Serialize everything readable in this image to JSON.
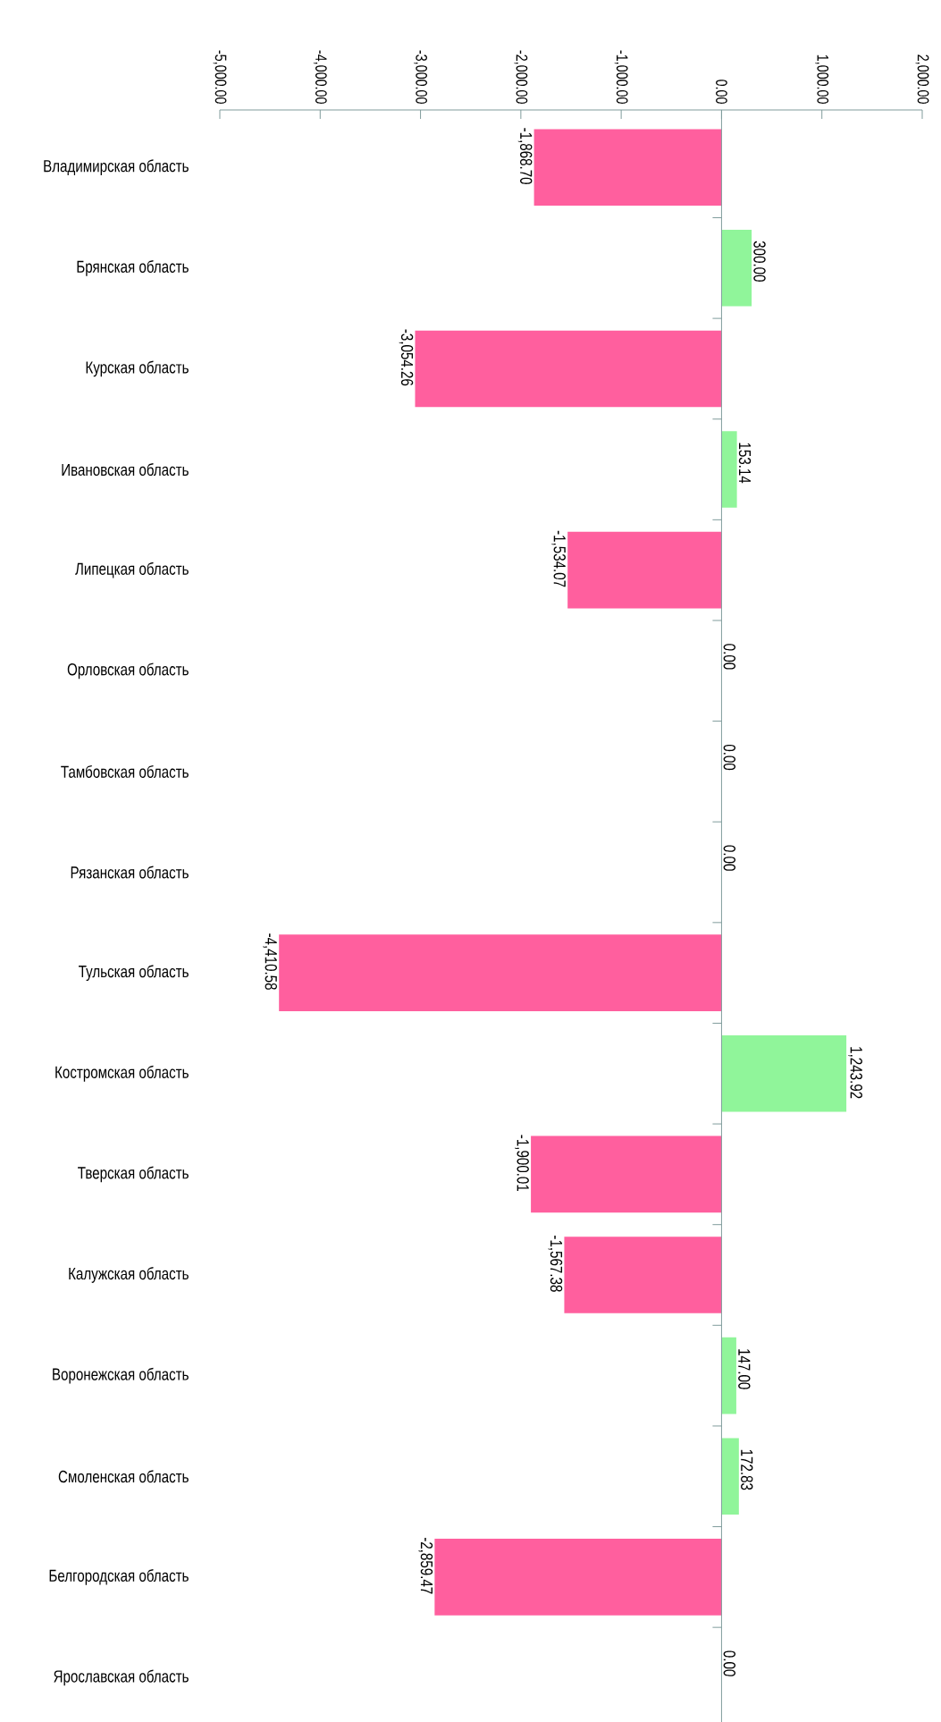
{
  "chart_data": {
    "type": "bar",
    "orientation": "horizontal",
    "categories": [
      "Владимирская область",
      "Брянская область",
      "Курская область",
      "Ивановская область",
      "Липецкая область",
      "Орловская область",
      "Тамбовская область",
      "Рязанская область",
      "Тульская область",
      "Костромская область",
      "Тверская область",
      "Калужская область",
      "Воронежская область",
      "Смоленская область",
      "Белгородская область",
      "Ярославская область"
    ],
    "values": [
      -1868.7,
      300.0,
      -3054.26,
      153.14,
      -1534.07,
      0.0,
      0.0,
      0.0,
      -4410.58,
      1243.92,
      -1900.01,
      -1567.38,
      147.0,
      172.83,
      -2859.47,
      0.0
    ],
    "colors": [
      "#ff5f9e",
      "#90f59a",
      "#ff5f9e",
      "#90f59a",
      "#ff5f9e",
      "#90f59a",
      "#90f59a",
      "#90f59a",
      "#ff5f9e",
      "#90f59a",
      "#ff5f9e",
      "#ff5f9e",
      "#90f59a",
      "#90f59a",
      "#ff5f9e",
      "#90f59a"
    ],
    "value_labels": [
      "-1,868.70",
      "300.00",
      "-3,054.26",
      "153.14",
      "-1,534.07",
      "0.00",
      "0.00",
      "0.00",
      "-4,410.58",
      "1,243.92",
      "-1,900.01",
      "-1,567.38",
      "147.00",
      "172.83",
      "-2,859.47",
      "0.00"
    ],
    "xlim": [
      -5000,
      2000
    ],
    "xticks": [
      {
        "value": -5000,
        "label": "-5,000.00"
      },
      {
        "value": -4000,
        "label": "-4,000.00"
      },
      {
        "value": -3000,
        "label": "-3,000.00"
      },
      {
        "value": -2000,
        "label": "-2,000.00"
      },
      {
        "value": -1000,
        "label": "-1,000.00"
      },
      {
        "value": 0,
        "label": "0.00"
      },
      {
        "value": 1000,
        "label": "1,000.00"
      },
      {
        "value": 2000,
        "label": "2,000.00"
      }
    ],
    "tick_labels": true
  }
}
